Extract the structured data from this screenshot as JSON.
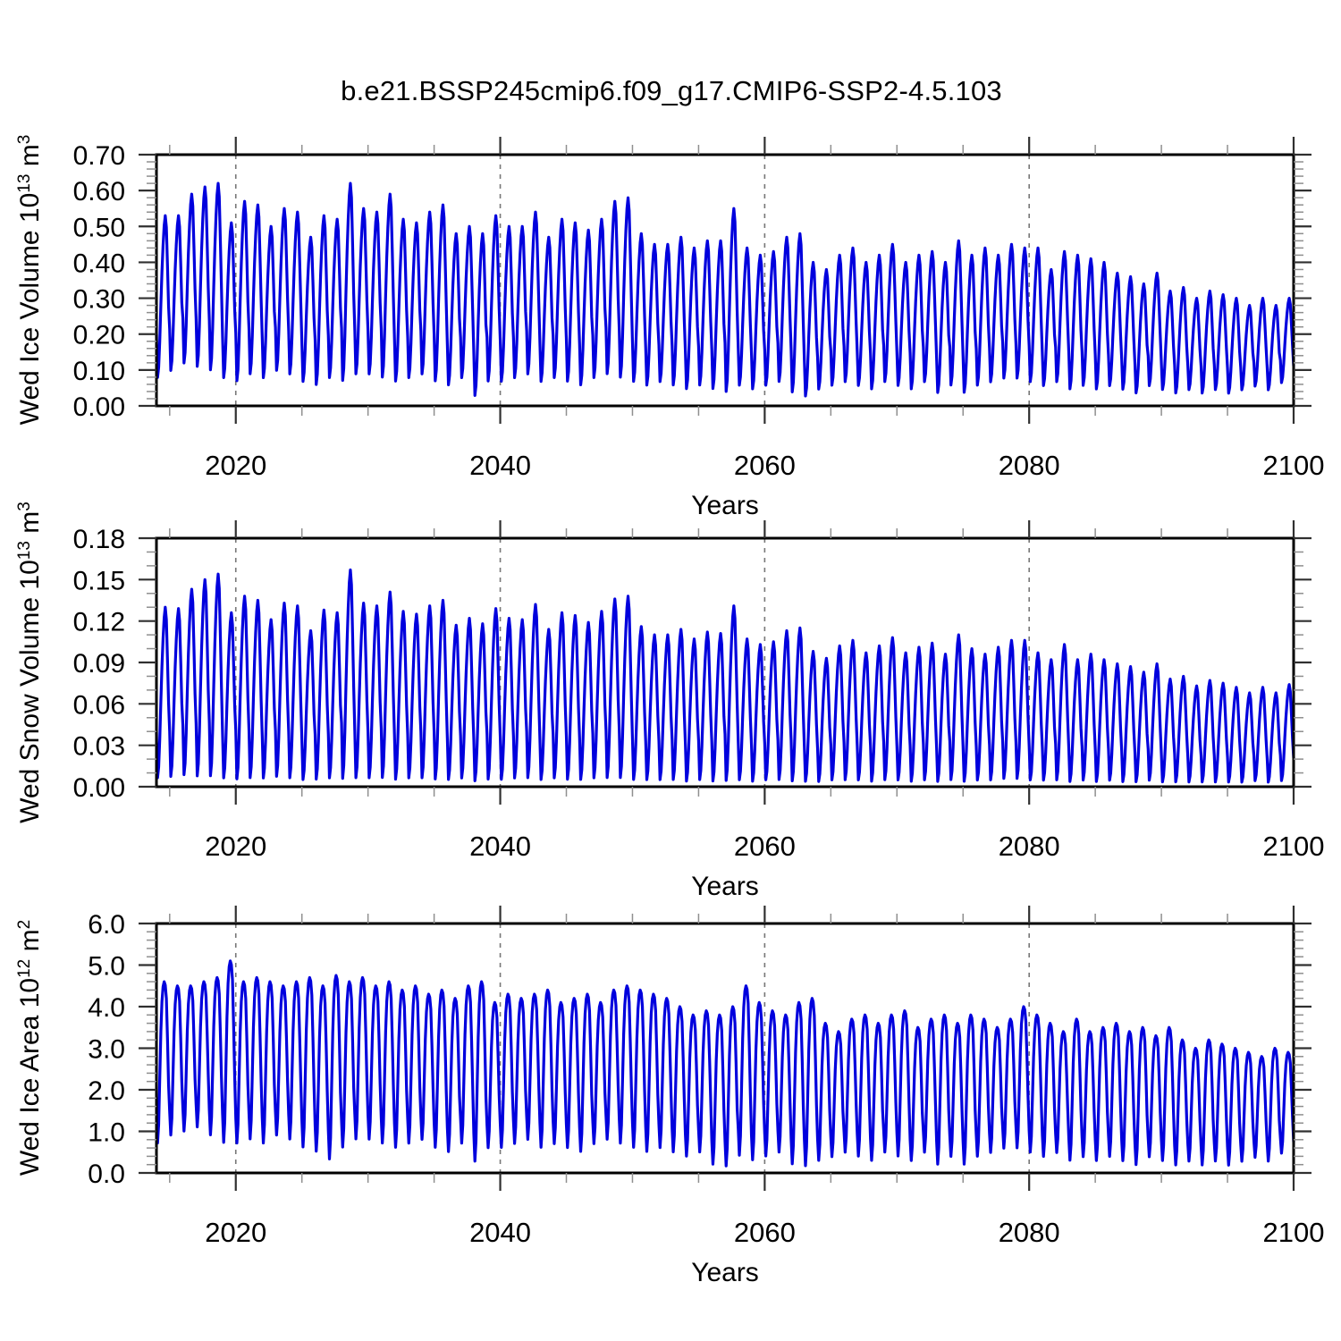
{
  "title": "b.e21.BSSP245cmip6.f09_g17.CMIP6-SSP2-4.5.103",
  "style": {
    "line_color": "#0000dd",
    "frame_color": "#000000",
    "major_tick_color": "#303030",
    "minor_tick_color": "#8f8f8f",
    "grid_color": "#777777",
    "text_color": "#000000",
    "background": "#ffffff"
  },
  "chart_data": [
    {
      "type": "line",
      "series_name": "Wed Ice Volume",
      "ylabel": {
        "base": "Wed Ice Volume 10",
        "exp": "13",
        "unit": " m",
        "unit_exp": "3"
      },
      "xlabel": "Years",
      "x_axis": {
        "min": 2014,
        "max": 2100,
        "major_ticks": [
          2020,
          2040,
          2060,
          2080,
          2100
        ],
        "tick_labels": [
          "2020",
          "2040",
          "2060",
          "2080",
          "2100"
        ],
        "minor_start": 2015,
        "minor_step": 5,
        "gridlines": [
          2020,
          2040,
          2060,
          2080
        ]
      },
      "y_axis": {
        "min": 0,
        "max": 0.7,
        "minor_step": 0.02,
        "ticks": [
          {
            "value": 0.0,
            "label": "0.00"
          },
          {
            "value": 0.1,
            "label": "0.10"
          },
          {
            "value": 0.2,
            "label": "0.20"
          },
          {
            "value": 0.3,
            "label": "0.30"
          },
          {
            "value": 0.4,
            "label": "0.40"
          },
          {
            "value": 0.5,
            "label": "0.50"
          },
          {
            "value": 0.6,
            "label": "0.60"
          },
          {
            "value": 0.7,
            "label": "0.70"
          }
        ]
      },
      "start_year": 2014,
      "seasonal_shape": [
        0.28,
        0.02,
        0.08,
        0.24,
        0.46,
        0.66,
        0.82,
        0.94,
        1.0,
        0.93,
        0.7,
        0.45
      ],
      "annual_max": [
        0.53,
        0.53,
        0.59,
        0.61,
        0.62,
        0.51,
        0.57,
        0.56,
        0.5,
        0.55,
        0.54,
        0.47,
        0.53,
        0.52,
        0.62,
        0.55,
        0.54,
        0.59,
        0.52,
        0.51,
        0.54,
        0.56,
        0.48,
        0.5,
        0.48,
        0.53,
        0.5,
        0.5,
        0.54,
        0.47,
        0.52,
        0.51,
        0.49,
        0.52,
        0.57,
        0.58,
        0.48,
        0.45,
        0.45,
        0.47,
        0.44,
        0.46,
        0.46,
        0.55,
        0.44,
        0.42,
        0.43,
        0.47,
        0.48,
        0.4,
        0.38,
        0.42,
        0.44,
        0.4,
        0.42,
        0.45,
        0.4,
        0.42,
        0.43,
        0.4,
        0.46,
        0.42,
        0.44,
        0.42,
        0.45,
        0.44,
        0.44,
        0.38,
        0.43,
        0.42,
        0.41,
        0.4,
        0.37,
        0.36,
        0.34,
        0.37,
        0.32,
        0.33,
        0.3,
        0.32,
        0.31,
        0.3,
        0.28,
        0.3,
        0.28,
        0.3,
        0.27
      ],
      "annual_min": [
        0.07,
        0.09,
        0.11,
        0.1,
        0.09,
        0.07,
        0.06,
        0.08,
        0.07,
        0.09,
        0.08,
        0.06,
        0.05,
        0.07,
        0.06,
        0.08,
        0.08,
        0.07,
        0.06,
        0.07,
        0.08,
        0.06,
        0.05,
        0.07,
        0.02,
        0.06,
        0.06,
        0.07,
        0.08,
        0.06,
        0.07,
        0.06,
        0.05,
        0.07,
        0.08,
        0.07,
        0.06,
        0.05,
        0.06,
        0.05,
        0.04,
        0.05,
        0.04,
        0.03,
        0.05,
        0.04,
        0.05,
        0.06,
        0.03,
        0.02,
        0.04,
        0.05,
        0.06,
        0.05,
        0.04,
        0.06,
        0.05,
        0.04,
        0.06,
        0.03,
        0.05,
        0.03,
        0.05,
        0.06,
        0.07,
        0.07,
        0.06,
        0.05,
        0.06,
        0.04,
        0.05,
        0.04,
        0.05,
        0.04,
        0.03,
        0.05,
        0.04,
        0.03,
        0.04,
        0.03,
        0.04,
        0.03,
        0.04,
        0.05,
        0.04,
        0.06,
        0.05
      ]
    },
    {
      "type": "line",
      "series_name": "Wed Snow Volume",
      "ylabel": {
        "base": "Wed Snow Volume 10",
        "exp": "13",
        "unit": " m",
        "unit_exp": "3"
      },
      "xlabel": "Years",
      "x_axis": {
        "min": 2014,
        "max": 2100,
        "major_ticks": [
          2020,
          2040,
          2060,
          2080,
          2100
        ],
        "tick_labels": [
          "2020",
          "2040",
          "2060",
          "2080",
          "2100"
        ],
        "minor_start": 2015,
        "minor_step": 5,
        "gridlines": [
          2020,
          2040,
          2060,
          2080
        ]
      },
      "y_axis": {
        "min": 0,
        "max": 0.18,
        "minor_step": 0.01,
        "ticks": [
          {
            "value": 0.0,
            "label": "0.00"
          },
          {
            "value": 0.03,
            "label": "0.03"
          },
          {
            "value": 0.06,
            "label": "0.06"
          },
          {
            "value": 0.09,
            "label": "0.09"
          },
          {
            "value": 0.12,
            "label": "0.12"
          },
          {
            "value": 0.15,
            "label": "0.15"
          },
          {
            "value": 0.18,
            "label": "0.18"
          }
        ]
      },
      "start_year": 2014,
      "seasonal_shape": [
        0.28,
        0.02,
        0.08,
        0.24,
        0.46,
        0.66,
        0.82,
        0.94,
        1.0,
        0.93,
        0.7,
        0.45
      ],
      "annual_max": [
        0.13,
        0.129,
        0.143,
        0.15,
        0.154,
        0.126,
        0.138,
        0.135,
        0.121,
        0.133,
        0.131,
        0.113,
        0.128,
        0.126,
        0.157,
        0.133,
        0.131,
        0.141,
        0.127,
        0.125,
        0.131,
        0.135,
        0.117,
        0.122,
        0.118,
        0.129,
        0.122,
        0.121,
        0.132,
        0.114,
        0.126,
        0.124,
        0.119,
        0.127,
        0.136,
        0.138,
        0.116,
        0.11,
        0.11,
        0.114,
        0.107,
        0.112,
        0.111,
        0.131,
        0.107,
        0.103,
        0.105,
        0.113,
        0.115,
        0.098,
        0.093,
        0.102,
        0.106,
        0.097,
        0.102,
        0.108,
        0.097,
        0.101,
        0.104,
        0.096,
        0.11,
        0.1,
        0.096,
        0.101,
        0.106,
        0.106,
        0.097,
        0.092,
        0.103,
        0.092,
        0.096,
        0.092,
        0.089,
        0.087,
        0.083,
        0.089,
        0.078,
        0.08,
        0.073,
        0.077,
        0.075,
        0.072,
        0.068,
        0.072,
        0.068,
        0.074,
        0.067
      ],
      "annual_min": [
        0.004,
        0.005,
        0.006,
        0.005,
        0.005,
        0.004,
        0.003,
        0.004,
        0.004,
        0.005,
        0.004,
        0.003,
        0.003,
        0.004,
        0.003,
        0.004,
        0.004,
        0.004,
        0.003,
        0.004,
        0.004,
        0.003,
        0.003,
        0.004,
        0.002,
        0.003,
        0.003,
        0.004,
        0.004,
        0.003,
        0.004,
        0.003,
        0.003,
        0.004,
        0.004,
        0.004,
        0.003,
        0.003,
        0.003,
        0.003,
        0.002,
        0.003,
        0.002,
        0.002,
        0.003,
        0.002,
        0.003,
        0.003,
        0.002,
        0.002,
        0.002,
        0.003,
        0.003,
        0.003,
        0.002,
        0.003,
        0.003,
        0.002,
        0.003,
        0.002,
        0.003,
        0.002,
        0.003,
        0.003,
        0.004,
        0.004,
        0.003,
        0.003,
        0.003,
        0.002,
        0.003,
        0.002,
        0.003,
        0.002,
        0.002,
        0.003,
        0.002,
        0.002,
        0.002,
        0.002,
        0.002,
        0.002,
        0.002,
        0.003,
        0.002,
        0.003,
        0.003
      ]
    },
    {
      "type": "line",
      "series_name": "Wed Ice Area",
      "ylabel": {
        "base": "Wed Ice Area 10",
        "exp": "12",
        "unit": " m",
        "unit_exp": "2"
      },
      "xlabel": "Years",
      "x_axis": {
        "min": 2014,
        "max": 2100,
        "major_ticks": [
          2020,
          2040,
          2060,
          2080,
          2100
        ],
        "tick_labels": [
          "2020",
          "2040",
          "2060",
          "2080",
          "2100"
        ],
        "minor_start": 2015,
        "minor_step": 5,
        "gridlines": [
          2020,
          2040,
          2060,
          2080
        ]
      },
      "y_axis": {
        "min": 0,
        "max": 6,
        "minor_step": 0.2,
        "ticks": [
          {
            "value": 0,
            "label": "0.0"
          },
          {
            "value": 1,
            "label": "1.0"
          },
          {
            "value": 2,
            "label": "2.0"
          },
          {
            "value": 3,
            "label": "3.0"
          },
          {
            "value": 4,
            "label": "4.0"
          },
          {
            "value": 5,
            "label": "5.0"
          },
          {
            "value": 6,
            "label": "6.0"
          }
        ]
      },
      "start_year": 2014,
      "seasonal_shape": [
        0.18,
        0.03,
        0.14,
        0.42,
        0.7,
        0.88,
        0.97,
        1.0,
        0.98,
        0.9,
        0.66,
        0.38
      ],
      "annual_max": [
        4.6,
        4.5,
        4.5,
        4.6,
        4.7,
        5.1,
        4.6,
        4.7,
        4.6,
        4.5,
        4.6,
        4.7,
        4.5,
        4.75,
        4.6,
        4.7,
        4.5,
        4.6,
        4.4,
        4.5,
        4.3,
        4.4,
        4.2,
        4.5,
        4.6,
        4.1,
        4.3,
        4.2,
        4.3,
        4.4,
        4.1,
        4.2,
        4.3,
        4.1,
        4.4,
        4.5,
        4.4,
        4.3,
        4.2,
        4.0,
        3.8,
        3.9,
        3.8,
        4.0,
        4.5,
        4.1,
        3.9,
        3.8,
        4.1,
        4.2,
        3.6,
        3.4,
        3.7,
        3.8,
        3.6,
        3.8,
        3.9,
        3.5,
        3.7,
        3.8,
        3.6,
        3.8,
        3.7,
        3.5,
        3.7,
        4.0,
        3.8,
        3.6,
        3.4,
        3.7,
        3.4,
        3.5,
        3.6,
        3.4,
        3.5,
        3.3,
        3.5,
        3.2,
        3.0,
        3.2,
        3.1,
        3.0,
        2.9,
        2.8,
        3.0,
        2.9,
        2.8
      ],
      "annual_min": [
        0.6,
        0.8,
        0.9,
        1.0,
        0.8,
        0.6,
        0.6,
        0.7,
        0.6,
        0.8,
        0.7,
        0.5,
        0.4,
        0.2,
        0.5,
        0.7,
        0.7,
        0.6,
        0.5,
        0.6,
        0.7,
        0.5,
        0.4,
        0.6,
        0.15,
        0.5,
        0.5,
        0.6,
        0.7,
        0.5,
        0.6,
        0.5,
        0.4,
        0.6,
        0.7,
        0.6,
        0.5,
        0.4,
        0.5,
        0.4,
        0.3,
        0.4,
        0.1,
        0.05,
        0.3,
        0.2,
        0.3,
        0.4,
        0.1,
        0.05,
        0.2,
        0.3,
        0.4,
        0.3,
        0.2,
        0.4,
        0.3,
        0.2,
        0.4,
        0.1,
        0.3,
        0.1,
        0.3,
        0.4,
        0.5,
        0.5,
        0.4,
        0.3,
        0.4,
        0.2,
        0.3,
        0.2,
        0.3,
        0.2,
        0.1,
        0.3,
        0.2,
        0.1,
        0.2,
        0.1,
        0.2,
        0.1,
        0.2,
        0.3,
        0.2,
        0.4,
        0.3
      ]
    }
  ]
}
